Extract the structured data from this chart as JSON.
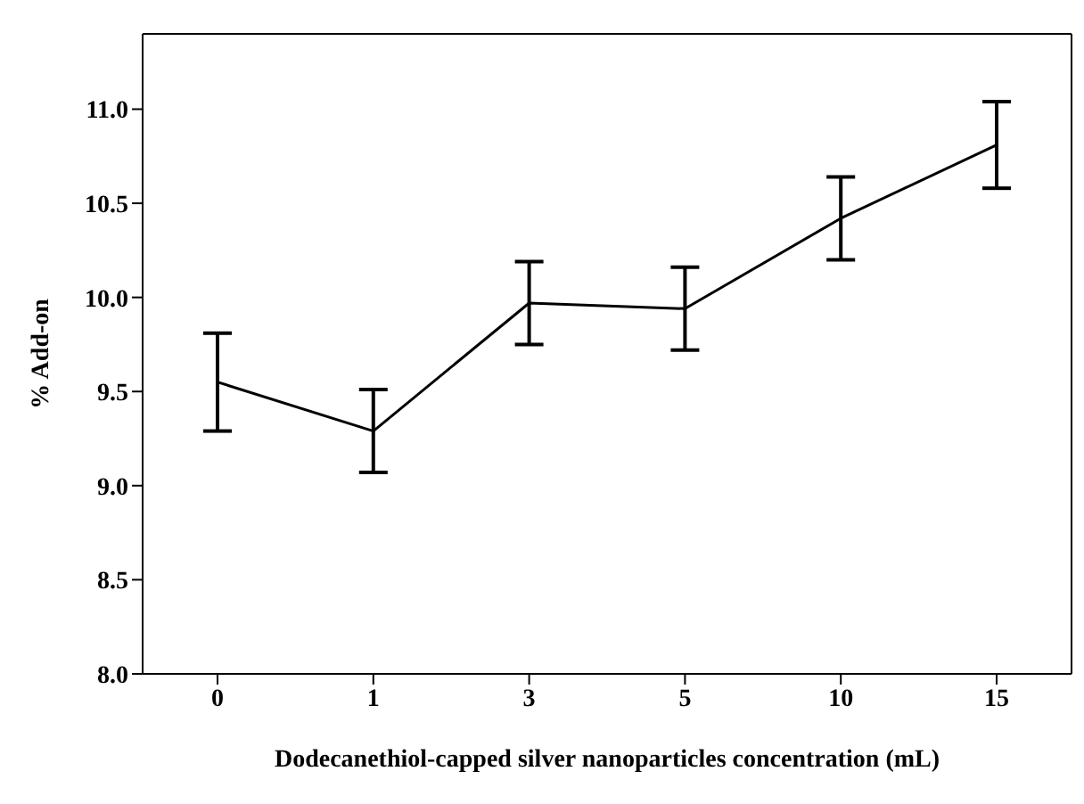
{
  "chart_data": {
    "type": "line",
    "xlabel": "Dodecanethiol-capped silver nanoparticles concentration (mL)",
    "ylabel": "% Add-on",
    "categories": [
      "0",
      "1",
      "3",
      "5",
      "10",
      "15"
    ],
    "values": [
      9.55,
      9.29,
      9.97,
      9.94,
      10.42,
      10.81
    ],
    "errors": [
      0.26,
      0.22,
      0.22,
      0.22,
      0.22,
      0.23
    ],
    "color": "#000000",
    "marker": "none",
    "line_style": "solid",
    "grid": false,
    "legend": false,
    "ylim": [
      8,
      11.4
    ],
    "yticks": [
      {
        "value": 8,
        "label": "8.0"
      },
      {
        "value": 8.5,
        "label": "8.5"
      },
      {
        "value": 9,
        "label": "9.0"
      },
      {
        "value": 9.5,
        "label": "9.5"
      },
      {
        "value": 10,
        "label": "10.0"
      },
      {
        "value": 10.5,
        "label": "10.5"
      },
      {
        "value": 11,
        "label": "11.0"
      }
    ]
  }
}
